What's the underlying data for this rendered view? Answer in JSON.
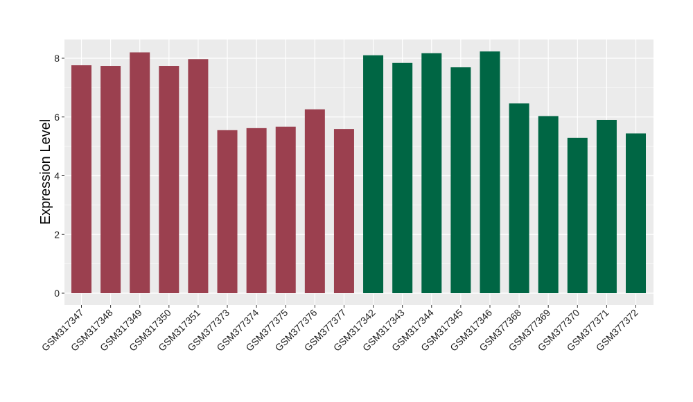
{
  "chart_data": {
    "type": "bar",
    "title": "",
    "xlabel": "",
    "ylabel": "Expression Level",
    "ylim": [
      0,
      8.6
    ],
    "yticks": [
      0,
      2,
      4,
      6,
      8
    ],
    "ytick_labels": [
      "0",
      "2",
      "4",
      "6",
      "8"
    ],
    "grid": true,
    "legend": "none",
    "categories": [
      "GSM317347",
      "GSM317348",
      "GSM317349",
      "GSM317350",
      "GSM317351",
      "GSM377373",
      "GSM377374",
      "GSM377375",
      "GSM377376",
      "GSM377377",
      "GSM317342",
      "GSM317343",
      "GSM317344",
      "GSM317345",
      "GSM317346",
      "GSM377368",
      "GSM377369",
      "GSM377370",
      "GSM377371",
      "GSM377372"
    ],
    "values": [
      7.76,
      7.74,
      8.2,
      7.74,
      7.97,
      5.55,
      5.62,
      5.67,
      6.26,
      5.59,
      8.1,
      7.84,
      8.17,
      7.69,
      8.23,
      6.46,
      6.03,
      5.29,
      5.9,
      5.44
    ],
    "groups": [
      0,
      0,
      0,
      0,
      0,
      0,
      0,
      0,
      0,
      0,
      1,
      1,
      1,
      1,
      1,
      1,
      1,
      1,
      1,
      1
    ],
    "colors": {
      "group_0": "#9b404f",
      "group_1": "#006644",
      "panel_background": "#ebebeb",
      "gridline": "#ffffff"
    }
  }
}
